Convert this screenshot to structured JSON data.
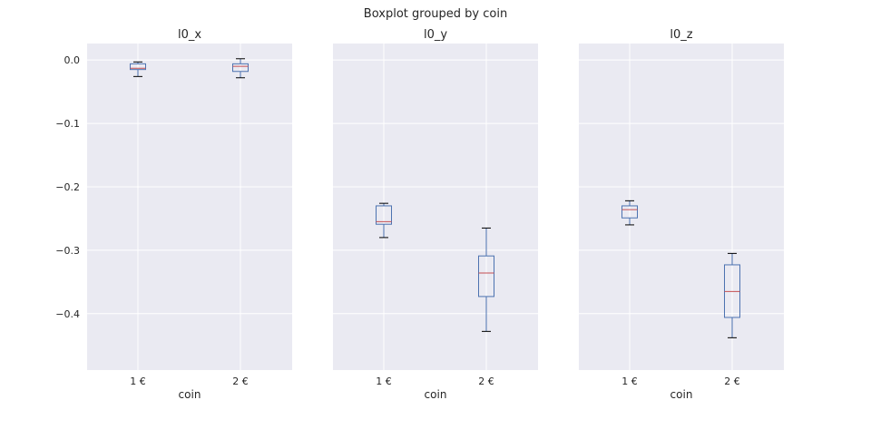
{
  "chart_data": {
    "type": "boxplot",
    "title": "Boxplot grouped by coin",
    "xlabel": "coin",
    "ylim": [
      -0.489,
      0.026
    ],
    "yticks": [
      0.0,
      -0.1,
      -0.2,
      -0.3,
      -0.4
    ],
    "ytick_labels": [
      "0.0",
      "−0.1",
      "−0.2",
      "−0.3",
      "−0.4"
    ],
    "categories": [
      "1 €",
      "2 €"
    ],
    "grid": true,
    "colors": {
      "background": "#eaeaf2",
      "box": "#4c72b0",
      "median": "#c44e52",
      "whisker_cap": "#000000",
      "grid": "#ffffff"
    },
    "panels": [
      {
        "title": "l0_x",
        "boxes": [
          {
            "whislo": -0.026,
            "q1": -0.015,
            "med": -0.013,
            "q3": -0.006,
            "whishi": -0.003
          },
          {
            "whislo": -0.028,
            "q1": -0.018,
            "med": -0.01,
            "q3": -0.006,
            "whishi": 0.002
          }
        ]
      },
      {
        "title": "l0_y",
        "boxes": [
          {
            "whislo": -0.28,
            "q1": -0.259,
            "med": -0.255,
            "q3": -0.23,
            "whishi": -0.226
          },
          {
            "whislo": -0.428,
            "q1": -0.373,
            "med": -0.336,
            "q3": -0.309,
            "whishi": -0.265
          }
        ]
      },
      {
        "title": "l0_z",
        "boxes": [
          {
            "whislo": -0.26,
            "q1": -0.249,
            "med": -0.236,
            "q3": -0.23,
            "whishi": -0.222
          },
          {
            "whislo": -0.438,
            "q1": -0.406,
            "med": -0.365,
            "q3": -0.323,
            "whishi": -0.305
          }
        ]
      }
    ]
  }
}
